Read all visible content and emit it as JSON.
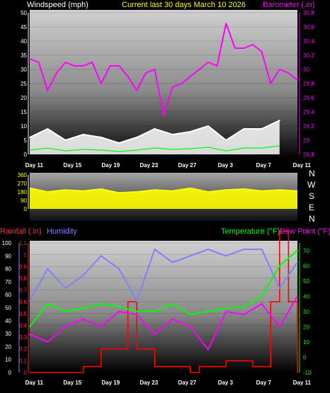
{
  "header": {
    "windspeed_label": "Windspeed (mph)",
    "title": "Current last 30 days March 10 2026",
    "barometer_label": "Barometer (.in)",
    "rainfall_label": "Rainfall (.in)",
    "humidity_label": "Humidity",
    "temperature_label": "Temperature (°F)",
    "dewpoint_label": "Dew Point (°F)"
  },
  "compass": [
    "N",
    "W",
    "S",
    "E",
    "N"
  ],
  "colors": {
    "windspeed": "#ffffff",
    "gust": "#00ff00",
    "barometer": "#ff00ff",
    "direction": "#ffff00",
    "rainfall": "#ff0000",
    "humidity": "#8080ff",
    "temperature": "#00ff00",
    "dewpoint": "#ff00ff"
  },
  "chart_data": [
    {
      "type": "line",
      "title": "Current last 30 days March 10 2026",
      "x_ticks": [
        "Day 11",
        "Day 15",
        "Day 19",
        "Day 23",
        "Day 27",
        "Day 3",
        "Day 7",
        "Day 11"
      ],
      "left_axis": {
        "label": "Windspeed (mph)",
        "ylim": [
          0,
          50
        ],
        "ticks": [
          0,
          5,
          10,
          15,
          20,
          25,
          30,
          35,
          40,
          45,
          50
        ]
      },
      "right_axis": {
        "label": "Barometer (.in)",
        "ylim": [
          28.8,
          30.8
        ],
        "ticks": [
          "28.8",
          "29",
          "29.2",
          "29.4",
          "29.6",
          "29.8",
          "30",
          "30.2",
          "30.4",
          "30.6",
          "30.8"
        ]
      },
      "grid": true,
      "series": [
        {
          "name": "Windspeed (mph)",
          "axis": "left",
          "x": [
            0,
            2,
            4,
            6,
            8,
            10,
            12,
            14,
            16,
            18,
            20,
            22,
            24,
            26,
            28
          ],
          "values": [
            6,
            9,
            5,
            7,
            6,
            4,
            6,
            9,
            7,
            8,
            10,
            5,
            9,
            9,
            12
          ]
        },
        {
          "name": "Barometer (.in)",
          "axis": "right",
          "x": [
            0,
            1,
            2,
            3,
            4,
            5,
            6,
            7,
            8,
            9,
            10,
            11,
            12,
            13,
            14,
            15,
            16,
            17,
            18,
            19,
            20,
            21,
            22,
            23,
            24,
            25,
            26,
            27,
            28,
            29,
            30
          ],
          "values": [
            30.15,
            30.1,
            29.7,
            29.95,
            30.1,
            30.05,
            30.05,
            30.1,
            29.8,
            30.05,
            30.05,
            29.9,
            29.7,
            29.95,
            30.0,
            29.35,
            29.75,
            29.8,
            29.9,
            30.0,
            30.1,
            30.05,
            30.65,
            30.3,
            30.3,
            30.35,
            30.25,
            29.8,
            30.0,
            29.95,
            29.85
          ]
        }
      ]
    },
    {
      "type": "line",
      "title": "",
      "x_ticks": [],
      "left_axis": {
        "label": "",
        "ylim": [
          0,
          360
        ],
        "ticks": [
          0,
          90,
          180,
          270,
          360
        ]
      },
      "series": [
        {
          "name": "",
          "x": [
            0,
            2,
            4,
            6,
            8,
            10,
            12,
            14,
            16,
            18,
            20,
            22,
            24,
            26,
            28,
            30
          ],
          "values": [
            220,
            180,
            200,
            190,
            210,
            170,
            180,
            200,
            190,
            220,
            180,
            200,
            210,
            190,
            200,
            190
          ]
        }
      ]
    },
    {
      "type": "line",
      "title": "",
      "x_ticks": [
        "Day 11",
        "Day 15",
        "Day 19",
        "Day 23",
        "Day 27",
        "Day 3",
        "Day 7",
        "Day 11"
      ],
      "left_axis": {
        "label": "Rainfall (.in)",
        "ylim": [
          0,
          1.1
        ],
        "ticks": [
          "0",
          "0.1",
          "0.2",
          "0.3",
          "0.4",
          "0.5",
          "0.6",
          "0.7",
          "0.8",
          "0.9",
          "1",
          "1.1"
        ]
      },
      "humidity_axis": {
        "label": "Humidity",
        "ylim": [
          0,
          100
        ],
        "ticks": [
          0,
          10,
          20,
          30,
          40,
          50,
          60,
          70,
          80,
          90,
          100
        ]
      },
      "right_axis": {
        "label": "Temperature (°F)",
        "ylim": [
          -10,
          75
        ],
        "ticks": [
          -10,
          0,
          10,
          20,
          30,
          40,
          50,
          60,
          70
        ]
      },
      "grid": true,
      "series": [
        {
          "name": "Rainfall (.in)",
          "axis": "left",
          "x": [
            0,
            5,
            6,
            8,
            11,
            12,
            14,
            18,
            19,
            22,
            25,
            27,
            28,
            29,
            30
          ],
          "values": [
            0,
            0,
            0.05,
            0.2,
            0.6,
            0.2,
            0.05,
            0,
            0.05,
            0.1,
            0.05,
            0.6,
            1.2,
            0.6,
            0
          ]
        },
        {
          "name": "Humidity",
          "axis": "humidity",
          "x": [
            0,
            2,
            4,
            6,
            8,
            10,
            12,
            14,
            16,
            18,
            20,
            22,
            24,
            26,
            28,
            30
          ],
          "values": [
            55,
            80,
            65,
            75,
            90,
            80,
            55,
            95,
            85,
            90,
            95,
            90,
            95,
            95,
            65,
            85
          ]
        },
        {
          "name": "Temperature (°F)",
          "axis": "right",
          "x": [
            0,
            2,
            4,
            6,
            8,
            10,
            12,
            14,
            16,
            18,
            20,
            22,
            24,
            26,
            28,
            30
          ],
          "values": [
            20,
            35,
            30,
            32,
            35,
            33,
            30,
            30,
            35,
            28,
            30,
            32,
            33,
            40,
            60,
            70
          ]
        },
        {
          "name": "Dew Point (°F)",
          "axis": "right",
          "x": [
            0,
            2,
            4,
            6,
            8,
            10,
            12,
            14,
            16,
            18,
            20,
            22,
            24,
            26,
            28,
            30
          ],
          "values": [
            15,
            10,
            20,
            25,
            20,
            30,
            28,
            15,
            25,
            20,
            5,
            30,
            28,
            35,
            20,
            40
          ]
        }
      ]
    }
  ]
}
